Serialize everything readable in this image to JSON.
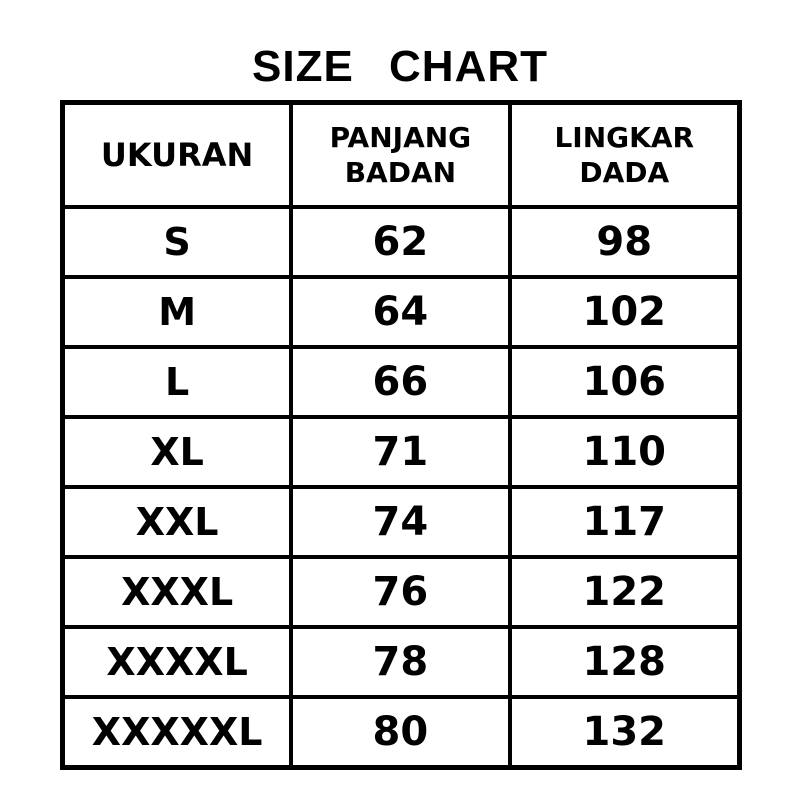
{
  "title": "SIZE CHART",
  "table": {
    "headers": [
      "UKURAN",
      "PANJANG BADAN",
      "LINGKAR DADA"
    ],
    "rows": [
      [
        "S",
        "62",
        "98"
      ],
      [
        "M",
        "64",
        "102"
      ],
      [
        "L",
        "66",
        "106"
      ],
      [
        "XL",
        "71",
        "110"
      ],
      [
        "XXL",
        "74",
        "117"
      ],
      [
        "XXXL",
        "76",
        "122"
      ],
      [
        "XXXXL",
        "78",
        "128"
      ],
      [
        "XXXXXL",
        "80",
        "132"
      ]
    ]
  }
}
